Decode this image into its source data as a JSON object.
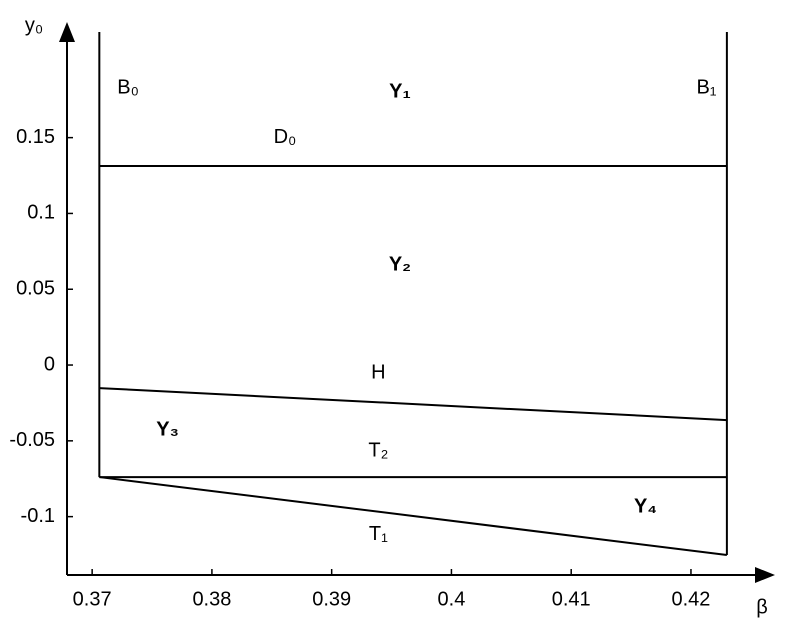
{
  "chart_data": {
    "type": "line",
    "x_label": "β",
    "y_label": "y₀",
    "xlim": [
      0.3679,
      0.4266
    ],
    "ylim": [
      -0.1385,
      0.221
    ],
    "xticks": [
      0.37,
      0.38,
      0.39,
      0.4,
      0.41,
      0.42
    ],
    "yticks": [
      -0.1,
      -0.05,
      0,
      0.05,
      0.1,
      0.15
    ],
    "series": [
      {
        "color": "#000000",
        "x": [
          0.3706,
          0.3706
        ],
        "values": [
          0.2197,
          -0.0739
        ]
      },
      {
        "color": "#000000",
        "x": [
          0.423,
          0.423
        ],
        "values": [
          0.2197,
          -0.1253
        ]
      },
      {
        "color": "#000000",
        "x": [
          0.3706,
          0.423
        ],
        "values": [
          0.1313,
          0.1313
        ]
      },
      {
        "color": "#000000",
        "x": [
          0.3706,
          0.423
        ],
        "values": [
          -0.0152,
          -0.0363
        ]
      },
      {
        "color": "#000000",
        "x": [
          0.3706,
          0.423
        ],
        "values": [
          -0.0739,
          -0.0739
        ]
      },
      {
        "color": "#000000",
        "x": [
          0.3706,
          0.423
        ],
        "values": [
          -0.0739,
          -0.1253
        ]
      }
    ],
    "annotations": [
      {
        "text": "B₀",
        "x": 0.373,
        "y": 0.1827,
        "weight": "normal"
      },
      {
        "text": "Y₁",
        "x": 0.3957,
        "y": 0.18,
        "weight": "bold"
      },
      {
        "text": "B₁",
        "x": 0.4213,
        "y": 0.1827,
        "weight": "normal"
      },
      {
        "text": "D₀",
        "x": 0.3861,
        "y": 0.15,
        "weight": "normal"
      },
      {
        "text": "Y₂",
        "x": 0.3957,
        "y": 0.066,
        "weight": "bold"
      },
      {
        "text": "H",
        "x": 0.3939,
        "y": -0.0053,
        "weight": "normal"
      },
      {
        "text": "Y₃",
        "x": 0.3763,
        "y": -0.043,
        "weight": "bold"
      },
      {
        "text": "T₂",
        "x": 0.3939,
        "y": -0.057,
        "weight": "normal"
      },
      {
        "text": "Y₄",
        "x": 0.4162,
        "y": -0.0937,
        "weight": "bold"
      },
      {
        "text": "T₁",
        "x": 0.3939,
        "y": -0.112,
        "weight": "normal"
      }
    ]
  }
}
